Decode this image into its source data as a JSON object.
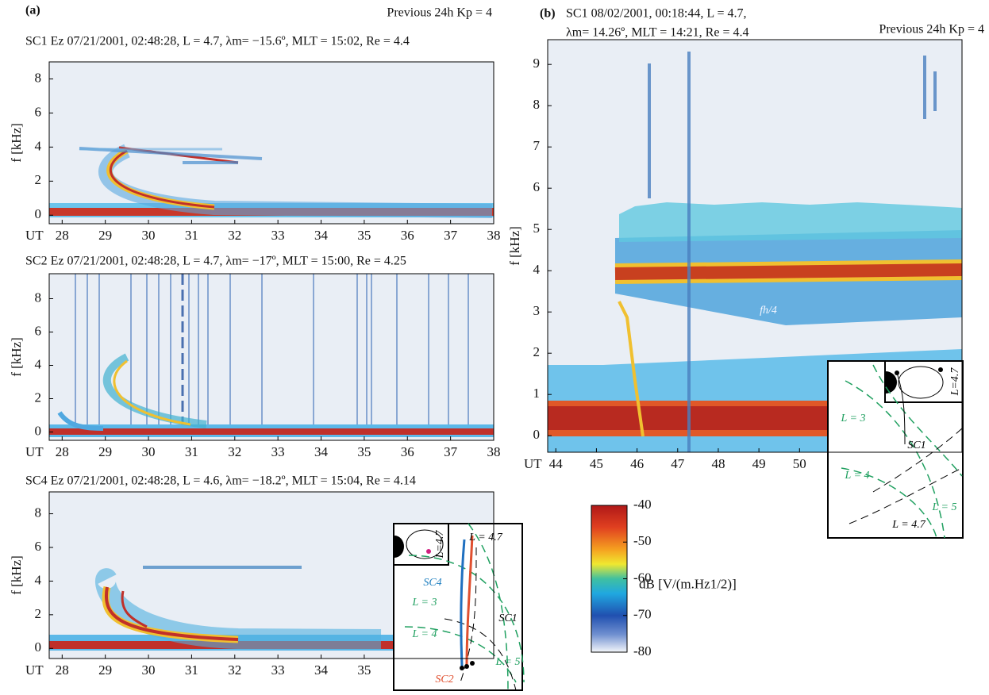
{
  "chart_data": [
    {
      "type": "spectrogram",
      "panel_label": "(a)",
      "kp_note": "Previous 24h Kp = 4",
      "title": "SC1 Ez 07/21/2001, 02:48:28, L = 4.7, λm= −15.6º, MLT = 15:02, Re = 4.4",
      "x_label": "UT",
      "y_label": "f [kHz]",
      "xlim": [
        27.7,
        38
      ],
      "xticks": [
        28,
        29,
        30,
        31,
        32,
        33,
        34,
        35,
        36,
        37,
        38
      ],
      "ylim": [
        -0.5,
        9
      ],
      "yticks": [
        0,
        2,
        4,
        6,
        8
      ]
    },
    {
      "type": "spectrogram",
      "title": "SC2 Ez 07/21/2001, 02:48:28, L = 4.7, λm= −17º, MLT = 15:00, Re = 4.25",
      "x_label": "UT",
      "y_label": "f [kHz]",
      "xlim": [
        27.7,
        38
      ],
      "xticks": [
        28,
        29,
        30,
        31,
        32,
        33,
        34,
        35,
        36,
        37,
        38
      ],
      "ylim": [
        -0.5,
        9.5
      ],
      "yticks": [
        0,
        2,
        4,
        6,
        8
      ]
    },
    {
      "type": "spectrogram",
      "title": "SC4 Ez 07/21/2001, 02:48:28, L = 4.6, λm= −18.2º, MLT = 15:04, Re = 4.14",
      "x_label": "UT",
      "y_label": "f [kHz]",
      "xlim": [
        27.7,
        38
      ],
      "xticks": [
        28,
        29,
        30,
        31,
        32,
        33,
        34,
        35
      ],
      "ylim": [
        -0.6,
        9.3
      ],
      "yticks": [
        0,
        2,
        4,
        6,
        8
      ],
      "annotations": [
        "L = 4.7",
        "L=4.7",
        "SC4",
        "L = 3",
        "SC1",
        "L = 4",
        "L = 5",
        "SC2"
      ]
    },
    {
      "type": "spectrogram",
      "panel_label": "(b)",
      "kp_note": "Previous 24h Kp = 4",
      "title": "SC1 08/02/2001, 00:18:44, L = 4.7,",
      "subtitle": "λm= 14.26º, MLT = 14:21, Re = 4.4",
      "x_label": "UT",
      "y_label": "f [kHz]",
      "xlim": [
        43.8,
        54
      ],
      "xticks": [
        44,
        45,
        46,
        47,
        48,
        49,
        50
      ],
      "ylim": [
        -0.4,
        9.6
      ],
      "yticks": [
        0,
        1,
        2,
        3,
        4,
        5,
        6,
        7,
        8,
        9
      ],
      "annotations": [
        "fh/4",
        "L=4.7",
        "L = 3",
        "SC1",
        "L = 4",
        "L = 5",
        "L = 4.7"
      ]
    },
    {
      "type": "colorbar",
      "label": "dB [V/(m.Hz1/2)]",
      "ylim": [
        -80,
        -40
      ],
      "yticks": [
        -40,
        -50,
        -60,
        -70,
        -80
      ]
    }
  ]
}
